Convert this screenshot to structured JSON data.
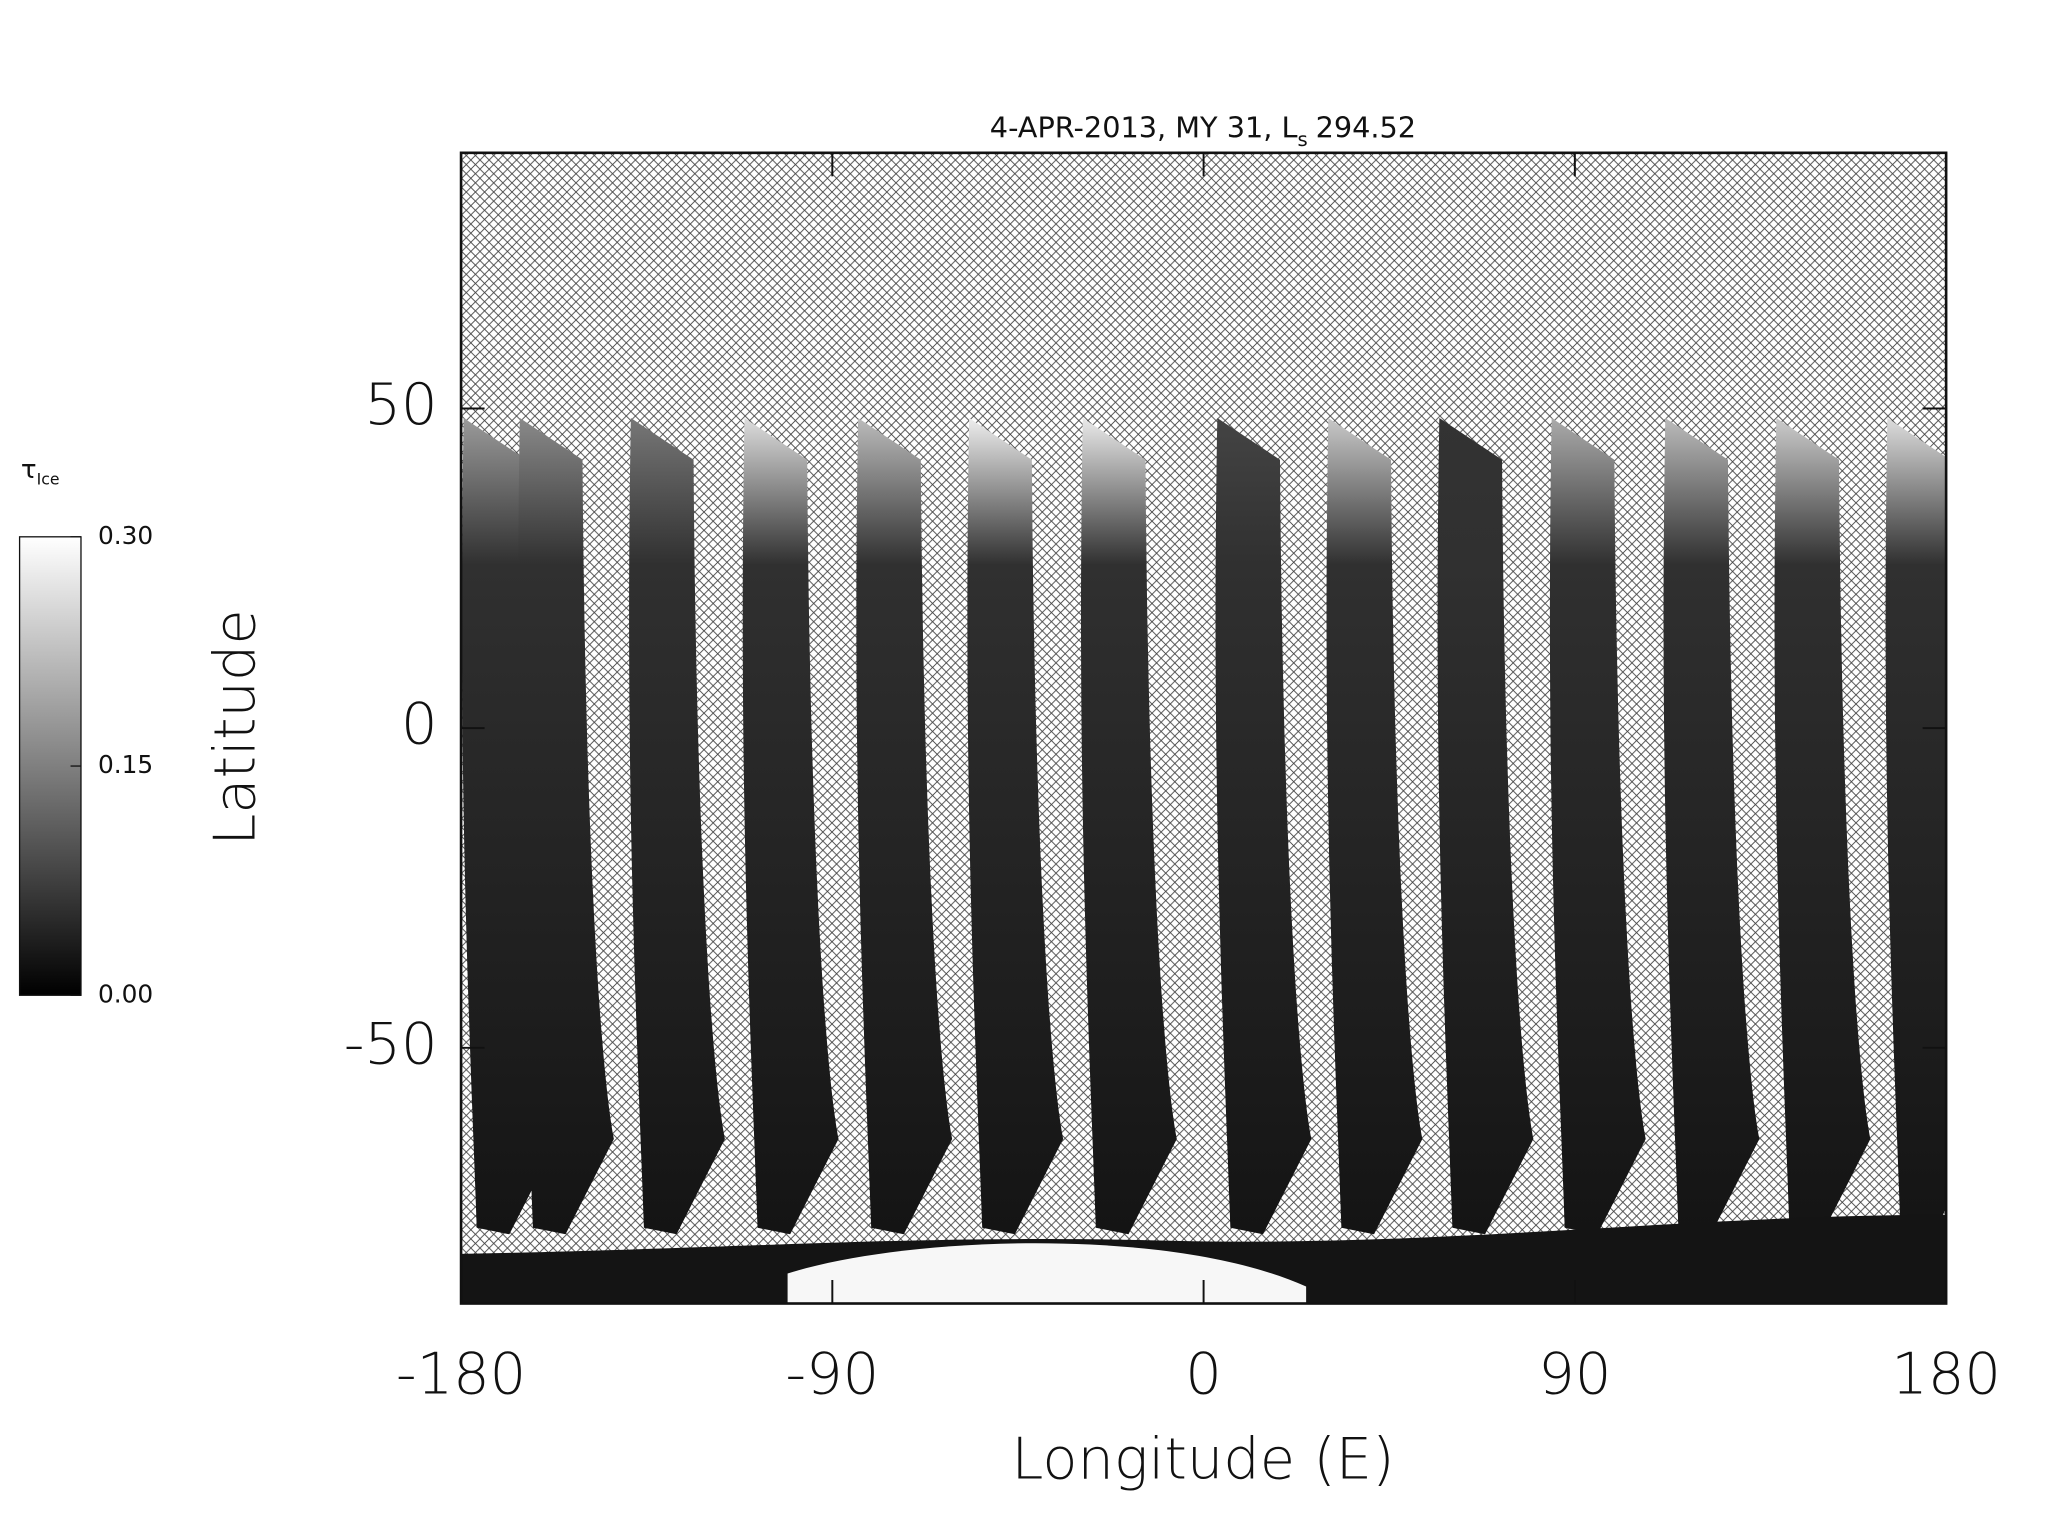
{
  "chart_data": {
    "type": "map",
    "title": "4-APR-2013, MY 31,  L",
    "title_subscript": "s",
    "title_value": 294.52,
    "xlabel": "Longitude (E)",
    "ylabel": "Latitude",
    "xlim": [
      -180,
      180
    ],
    "xticks": [
      -180,
      -90,
      0,
      90,
      180
    ],
    "ylim": [
      -90,
      90
    ],
    "yticks": [
      -50,
      0,
      50
    ],
    "colorbar": {
      "label": "τ",
      "label_subscript": "Ice",
      "lim": [
        0,
        0.3
      ],
      "ticks": [
        {
          "value": 0,
          "label": "0.00"
        },
        {
          "value": 0.15,
          "label": "0.15"
        },
        {
          "value": 0.3,
          "label": "0.30"
        }
      ]
    }
  }
}
